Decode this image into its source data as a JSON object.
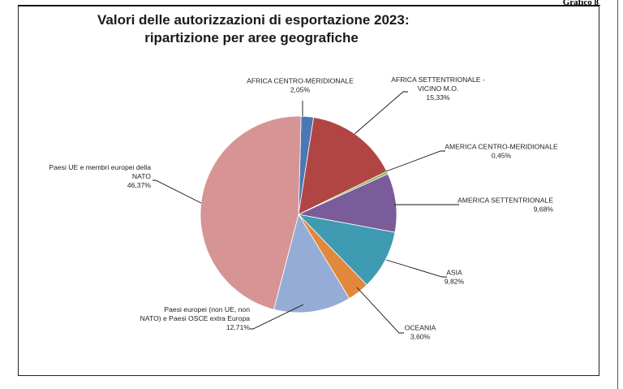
{
  "page_label": "Grafico 8",
  "chart_data": {
    "type": "pie",
    "title": [
      "Valori delle autorizzazioni di esportazione 2023:",
      "ripartizione per aree geografiche"
    ],
    "slices": [
      {
        "label": [
          "AFRICA CENTRO-MERIDIONALE"
        ],
        "value_label": "2,05%",
        "value": 2.05,
        "color": "#4a78b5"
      },
      {
        "label": [
          "AFRICA SETTENTRIONALE -",
          "VICINO M.O."
        ],
        "value_label": "15,33%",
        "value": 15.33,
        "color": "#b04544"
      },
      {
        "label": [
          "AMERICA CENTRO-MERIDIONALE"
        ],
        "value_label": "0,45%",
        "value": 0.45,
        "color": "#94b25c"
      },
      {
        "label": [
          "AMERICA SETTENTRIONALE"
        ],
        "value_label": "9,68%",
        "value": 9.68,
        "color": "#7a5c9a"
      },
      {
        "label": [
          "ASIA"
        ],
        "value_label": "9,82%",
        "value": 9.82,
        "color": "#3f9bb1"
      },
      {
        "label": [
          "OCEANIA"
        ],
        "value_label": "3,60%",
        "value": 3.6,
        "color": "#e2883d"
      },
      {
        "label": [
          "Paesi europei (non UE, non",
          "NATO) e Paesi OSCE extra Europa"
        ],
        "value_label": "12,71%",
        "value": 12.71,
        "color": "#95add6"
      },
      {
        "label": [
          "Paesi UE e membri europei della",
          "NATO"
        ],
        "value_label": "46,37%",
        "value": 46.37,
        "color": "#d69594"
      }
    ]
  }
}
